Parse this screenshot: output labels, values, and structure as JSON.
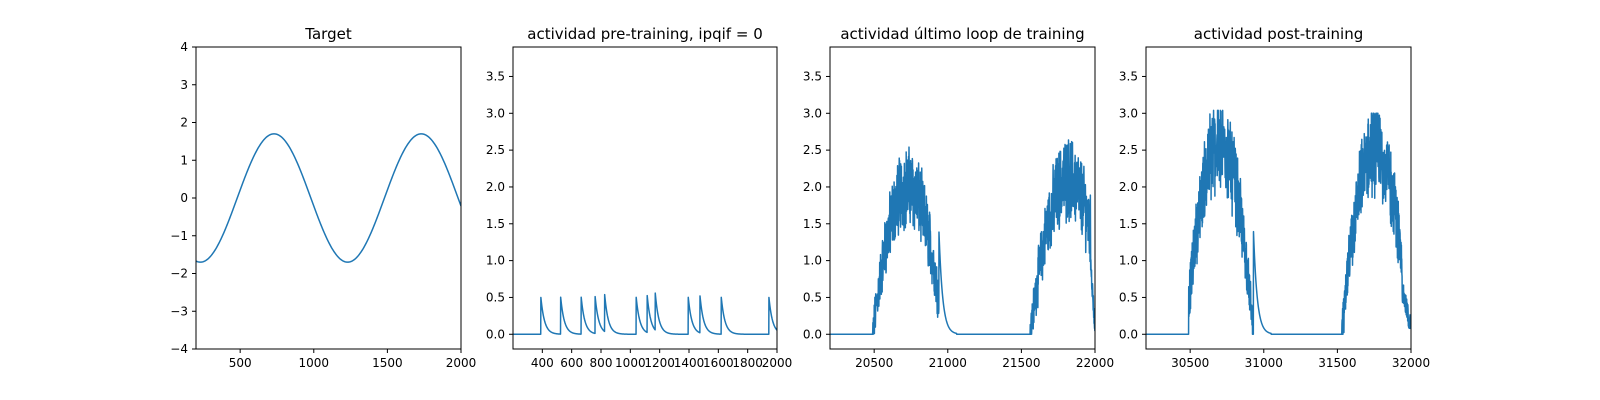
{
  "figure": {
    "background": "#ffffff",
    "line_color": "#1f77b4"
  },
  "chart_data": [
    {
      "type": "line",
      "title": "Target",
      "xlim": [
        200,
        2000
      ],
      "ylim": [
        -4,
        4
      ],
      "xticks": [
        500,
        1000,
        1500,
        2000
      ],
      "yticks": [
        -4,
        -3,
        -2,
        -1,
        0,
        1,
        2,
        3,
        4
      ],
      "ytick_labels": [
        "−4",
        "−3",
        "−2",
        "−1",
        "0",
        "1",
        "2",
        "3",
        "4"
      ],
      "series": [
        {
          "x": [
            200,
            230,
            280,
            330,
            380,
            430,
            480,
            530,
            580,
            630,
            680,
            730,
            780,
            830,
            880,
            930,
            980,
            1030,
            1080,
            1130,
            1180,
            1230,
            1280,
            1330,
            1380,
            1430,
            1480,
            1530,
            1580,
            1630,
            1680,
            1730,
            1780,
            1830,
            1880,
            1930,
            1980,
            2000
          ],
          "y": [
            -1.7,
            -1.72,
            -1.65,
            -1.46,
            -1.16,
            -0.78,
            -0.34,
            0.12,
            0.58,
            1.05,
            1.44,
            1.7,
            1.66,
            1.4,
            1.0,
            0.52,
            0.0,
            -0.52,
            -1.0,
            -1.4,
            -1.66,
            -1.7,
            -1.66,
            -1.4,
            -1.0,
            -0.52,
            0.0,
            0.52,
            1.0,
            1.4,
            1.66,
            1.7,
            1.66,
            1.4,
            1.0,
            0.52,
            0.0,
            -0.15
          ]
        }
      ]
    },
    {
      "type": "line",
      "title": "actividad pre-training, ipqif = 0",
      "xlim": [
        200,
        2000
      ],
      "ylim": [
        -0.2,
        3.9
      ],
      "xticks": [
        400,
        600,
        800,
        1000,
        1200,
        1400,
        1600,
        1800,
        2000
      ],
      "yticks": [
        0.0,
        0.5,
        1.0,
        1.5,
        2.0,
        2.5,
        3.0,
        3.5
      ],
      "ytick_labels": [
        "0.0",
        "0.5",
        "1.0",
        "1.5",
        "2.0",
        "2.5",
        "3.0",
        "3.5"
      ],
      "spikes": {
        "times": [
          390,
          525,
          665,
          760,
          825,
          1040,
          1115,
          1170,
          1395,
          1475,
          1620,
          1945
        ],
        "peak": 0.5,
        "decay": 25
      }
    },
    {
      "type": "line",
      "title": "actividad último loop de training",
      "xlim": [
        20200,
        22000
      ],
      "ylim": [
        -0.2,
        3.9
      ],
      "xticks": [
        20500,
        21000,
        21500,
        22000
      ],
      "yticks": [
        0.0,
        0.5,
        1.0,
        1.5,
        2.0,
        2.5,
        3.0,
        3.5
      ],
      "ytick_labels": [
        "0.0",
        "0.5",
        "1.0",
        "1.5",
        "2.0",
        "2.5",
        "3.0",
        "3.5"
      ],
      "bursts": [
        {
          "onset": 20490,
          "peak_center": 20730,
          "peak_value": 2.0,
          "offset": 20940,
          "max": 2.82
        },
        {
          "onset": 21560,
          "peak_center": 21820,
          "peak_value": 2.1,
          "offset": 21970,
          "max": 2.92
        }
      ],
      "tail": {
        "start": 21970,
        "end": 22000,
        "from": 1.0,
        "to": 0.05
      }
    },
    {
      "type": "line",
      "title": "actividad post-training",
      "xlim": [
        30200,
        32000
      ],
      "ylim": [
        -0.2,
        3.9
      ],
      "xticks": [
        30500,
        31000,
        31500,
        32000
      ],
      "yticks": [
        0.0,
        0.5,
        1.0,
        1.5,
        2.0,
        2.5,
        3.0,
        3.5
      ],
      "ytick_labels": [
        "0.0",
        "0.5",
        "1.0",
        "1.5",
        "2.0",
        "2.5",
        "3.0",
        "3.5"
      ],
      "bursts": [
        {
          "onset": 30490,
          "peak_center": 30700,
          "peak_value": 2.6,
          "offset": 30930,
          "max": 3.04
        },
        {
          "onset": 31530,
          "peak_center": 31760,
          "peak_value": 2.5,
          "offset": 31940,
          "max": 3.0
        }
      ],
      "tail": {
        "start": 31940,
        "end": 32000,
        "from": 0.6,
        "to": 0.08
      }
    }
  ]
}
